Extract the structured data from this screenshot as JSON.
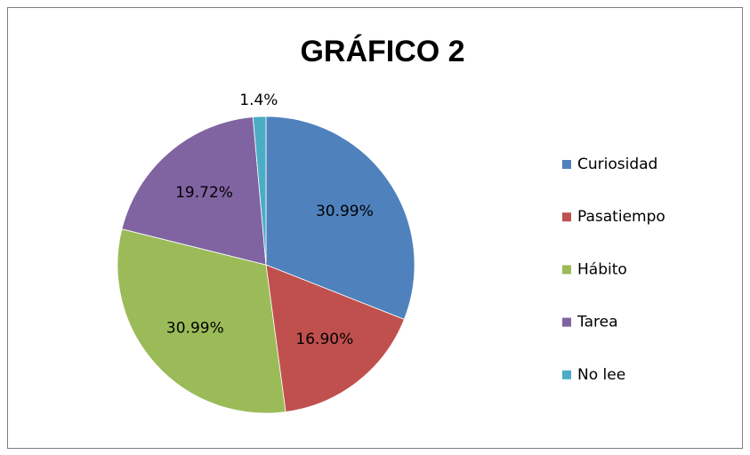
{
  "chart_data": {
    "type": "pie",
    "title": "GRÁFICO 2",
    "categories": [
      "Curiosidad",
      "Pasatiempo",
      "Hábito",
      "Tarea",
      "No lee"
    ],
    "values": [
      30.99,
      16.9,
      30.99,
      19.72,
      1.4
    ],
    "value_labels": [
      "30.99%",
      "16.90%",
      "30.99%",
      "19.72%",
      "1.4%"
    ],
    "colors": [
      "#4F81BD",
      "#C0504D",
      "#9BBB59",
      "#8064A2",
      "#4BACC6"
    ],
    "legend": "right"
  }
}
